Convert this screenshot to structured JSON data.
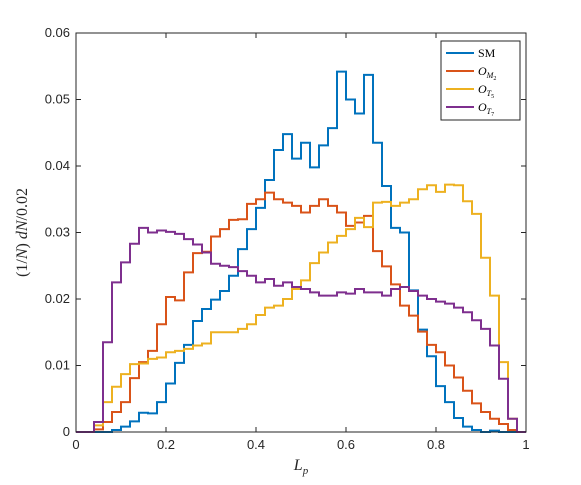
{
  "chart_data": {
    "type": "histogram-stairs",
    "title": "",
    "xlabel": "L_p",
    "ylabel": "(1/N) dN/0.02",
    "xlim": [
      0,
      1
    ],
    "ylim": [
      0,
      0.06
    ],
    "grid": false,
    "legend_position": "top-right",
    "x_ticks": [
      0,
      0.2,
      0.4,
      0.6,
      0.8,
      1
    ],
    "x_tick_labels": [
      "0",
      "0.2",
      "0.4",
      "0.6",
      "0.8",
      "1"
    ],
    "y_ticks": [
      0,
      0.01,
      0.02,
      0.03,
      0.04,
      0.05,
      0.06
    ],
    "y_tick_labels": [
      "0",
      "0.01",
      "0.02",
      "0.03",
      "0.04",
      "0.05",
      "0.06"
    ],
    "bin_edges": [
      0,
      0.02,
      0.04,
      0.06,
      0.08,
      0.1,
      0.12,
      0.14,
      0.16,
      0.18,
      0.2,
      0.22,
      0.24,
      0.26,
      0.28,
      0.3,
      0.32,
      0.34,
      0.36,
      0.38,
      0.4,
      0.42,
      0.44,
      0.46,
      0.48,
      0.5,
      0.52,
      0.54,
      0.56,
      0.58,
      0.6,
      0.62,
      0.64,
      0.66,
      0.68,
      0.7,
      0.72,
      0.74,
      0.76,
      0.78,
      0.8,
      0.82,
      0.84,
      0.86,
      0.88,
      0.9,
      0.92,
      0.94,
      0.96,
      0.98,
      1
    ],
    "series": [
      {
        "name": "SM",
        "label_main": "SM",
        "label_sub": "",
        "color": "#0072BD",
        "values": [
          0,
          0,
          0,
          0,
          0.0003,
          0.0008,
          0.0016,
          0.0029,
          0.0028,
          0.0045,
          0.0073,
          0.0104,
          0.0131,
          0.0167,
          0.0185,
          0.0199,
          0.0212,
          0.0235,
          0.0275,
          0.0305,
          0.0337,
          0.0379,
          0.0424,
          0.0448,
          0.0411,
          0.0435,
          0.0398,
          0.0431,
          0.0457,
          0.0542,
          0.05,
          0.0479,
          0.0537,
          0.0435,
          0.037,
          0.0307,
          0.03,
          0.0213,
          0.0154,
          0.0114,
          0.0069,
          0.0045,
          0.0021,
          0.0008,
          0.0003,
          0,
          0.0002,
          0,
          0,
          0
        ]
      },
      {
        "name": "O_{M_2}",
        "label_main": "O",
        "label_sub": "M",
        "label_subsub": "2",
        "color": "#D95319",
        "values": [
          0,
          0,
          0.0004,
          0.0015,
          0.003,
          0.0045,
          0.0081,
          0.0105,
          0.0122,
          0.0162,
          0.0203,
          0.0198,
          0.024,
          0.0269,
          0.0271,
          0.0294,
          0.0305,
          0.0319,
          0.032,
          0.0343,
          0.035,
          0.036,
          0.035,
          0.0345,
          0.034,
          0.033,
          0.034,
          0.035,
          0.034,
          0.033,
          0.031,
          0.0315,
          0.0325,
          0.0272,
          0.0249,
          0.0222,
          0.019,
          0.0175,
          0.0151,
          0.0131,
          0.012,
          0.01,
          0.0082,
          0.0062,
          0.0043,
          0.003,
          0.002,
          0.0012,
          0.0003,
          0
        ]
      },
      {
        "name": "O_{T_5}",
        "label_main": "O",
        "label_sub": "T",
        "label_subsub": "5",
        "color": "#EDB120",
        "values": [
          0,
          0,
          0.001,
          0.0045,
          0.0068,
          0.0087,
          0.0102,
          0.0103,
          0.011,
          0.0112,
          0.012,
          0.0122,
          0.0125,
          0.013,
          0.0133,
          0.015,
          0.015,
          0.015,
          0.0155,
          0.0162,
          0.0176,
          0.0187,
          0.019,
          0.02,
          0.0215,
          0.0228,
          0.0254,
          0.027,
          0.0285,
          0.0295,
          0.0305,
          0.0322,
          0.0308,
          0.0345,
          0.0346,
          0.034,
          0.0345,
          0.035,
          0.0365,
          0.0371,
          0.0361,
          0.0372,
          0.0371,
          0.0347,
          0.0328,
          0.0262,
          0.0205,
          0.0105,
          0.002,
          0
        ]
      },
      {
        "name": "O_{T_7}",
        "label_main": "O",
        "label_sub": "T",
        "label_subsub": "7",
        "color": "#7E2F8E",
        "values": [
          0,
          0,
          0.0015,
          0.0135,
          0.0225,
          0.0255,
          0.0283,
          0.0307,
          0.03,
          0.0303,
          0.0301,
          0.0298,
          0.029,
          0.0282,
          0.027,
          0.0253,
          0.025,
          0.0248,
          0.0242,
          0.0235,
          0.0225,
          0.023,
          0.022,
          0.0225,
          0.0218,
          0.0215,
          0.021,
          0.0205,
          0.0205,
          0.021,
          0.0208,
          0.0215,
          0.021,
          0.021,
          0.0205,
          0.0215,
          0.0218,
          0.0212,
          0.0205,
          0.02,
          0.0196,
          0.0193,
          0.0187,
          0.018,
          0.0168,
          0.0155,
          0.013,
          0.008,
          0.002,
          0
        ]
      }
    ]
  }
}
